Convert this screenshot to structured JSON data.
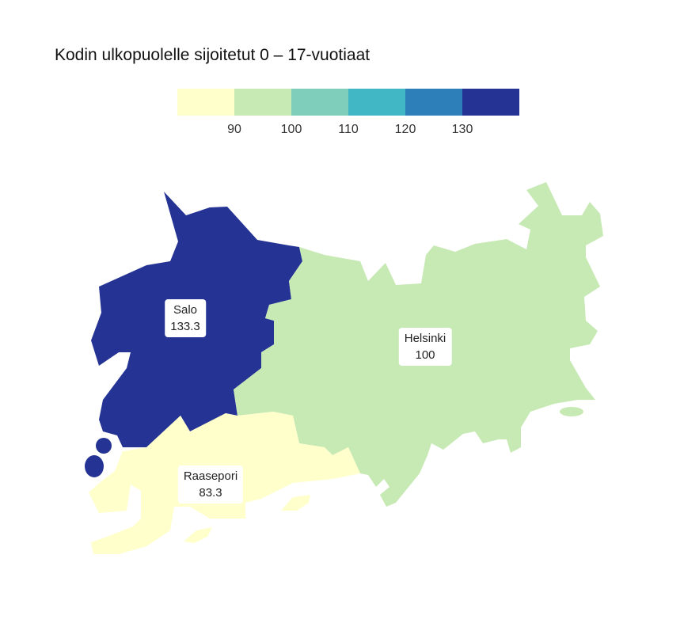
{
  "title": "Kodin ulkopuolelle sijoitetut 0 – 17-vuotiaat",
  "legend": {
    "colors": [
      "#ffffcc",
      "#c7e9b4",
      "#7fcdbb",
      "#41b6c4",
      "#2c7fb8",
      "#253494"
    ],
    "ticks": [
      "90",
      "100",
      "110",
      "120",
      "130"
    ]
  },
  "regions": [
    {
      "name": "Salo",
      "value": "133.3",
      "color": "#253494"
    },
    {
      "name": "Helsinki",
      "value": "100",
      "color": "#c7e9b4"
    },
    {
      "name": "Raasepori",
      "value": "83.3",
      "color": "#ffffcc"
    }
  ]
}
